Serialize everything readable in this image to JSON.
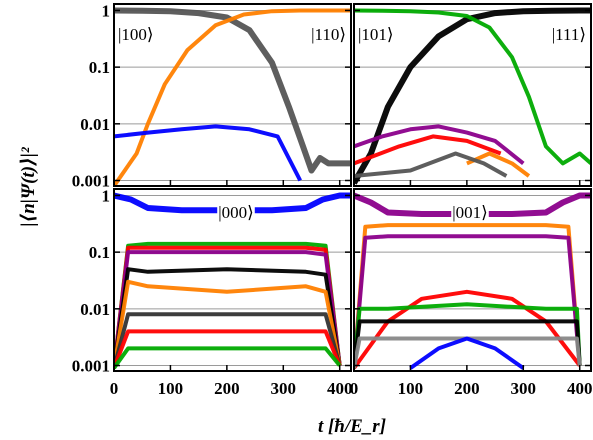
{
  "chart_data": {
    "type": "line",
    "xlabel": "t  [ħ/E_r]",
    "ylabel": "|⟨n|Ψ(t)⟩|²",
    "xlim": [
      0,
      420
    ],
    "ylim": [
      0.0008,
      1.3
    ],
    "yscale": "log",
    "xticks": [
      "0",
      "100",
      "200",
      "300",
      "400"
    ],
    "yticks": [
      "1",
      "0.1",
      "0.01",
      "0.001"
    ],
    "grid": true,
    "panels": [
      {
        "id": "top-left",
        "labels": [
          "|100⟩",
          "|110⟩"
        ],
        "series": [
          {
            "color": "#555555",
            "points": [
              [
                0,
                1
              ],
              [
                50,
                0.99
              ],
              [
                100,
                0.97
              ],
              [
                150,
                0.9
              ],
              [
                200,
                0.75
              ],
              [
                240,
                0.45
              ],
              [
                280,
                0.12
              ],
              [
                310,
                0.02
              ],
              [
                335,
                0.004
              ],
              [
                350,
                0.0015
              ],
              [
                365,
                0.0025
              ],
              [
                380,
                0.002
              ],
              [
                400,
                0.002
              ],
              [
                420,
                0.002
              ]
            ]
          },
          {
            "color": "#ff8000",
            "points": [
              [
                0,
                0.0008
              ],
              [
                40,
                0.003
              ],
              [
                60,
                0.01
              ],
              [
                90,
                0.05
              ],
              [
                130,
                0.2
              ],
              [
                180,
                0.55
              ],
              [
                230,
                0.85
              ],
              [
                280,
                0.97
              ],
              [
                330,
                1
              ],
              [
                420,
                1
              ]
            ]
          },
          {
            "color": "#0000ff",
            "points": [
              [
                0,
                0.006
              ],
              [
                60,
                0.007
              ],
              [
                120,
                0.008
              ],
              [
                180,
                0.009
              ],
              [
                240,
                0.008
              ],
              [
                290,
                0.006
              ],
              [
                330,
                0.001
              ]
            ]
          }
        ]
      },
      {
        "id": "top-right",
        "labels": [
          "|101⟩",
          "|111⟩"
        ],
        "series": [
          {
            "color": "#000000",
            "points": [
              [
                0,
                0.0009
              ],
              [
                30,
                0.003
              ],
              [
                60,
                0.02
              ],
              [
                100,
                0.1
              ],
              [
                150,
                0.35
              ],
              [
                200,
                0.7
              ],
              [
                250,
                0.9
              ],
              [
                300,
                0.97
              ],
              [
                350,
                0.99
              ],
              [
                400,
                1
              ],
              [
                420,
                1
              ]
            ]
          },
          {
            "color": "#00aa00",
            "points": [
              [
                0,
                1
              ],
              [
                50,
                0.99
              ],
              [
                100,
                0.97
              ],
              [
                150,
                0.92
              ],
              [
                200,
                0.8
              ],
              [
                240,
                0.5
              ],
              [
                280,
                0.15
              ],
              [
                310,
                0.03
              ],
              [
                340,
                0.004
              ],
              [
                370,
                0.002
              ],
              [
                400,
                0.003
              ],
              [
                420,
                0.002
              ]
            ]
          },
          {
            "color": "#8b008b",
            "points": [
              [
                0,
                0.004
              ],
              [
                50,
                0.006
              ],
              [
                100,
                0.008
              ],
              [
                150,
                0.009
              ],
              [
                200,
                0.007
              ],
              [
                250,
                0.005
              ],
              [
                300,
                0.002
              ]
            ]
          },
          {
            "color": "#ff0000",
            "points": [
              [
                0,
                0.002
              ],
              [
                80,
                0.004
              ],
              [
                140,
                0.006
              ],
              [
                200,
                0.005
              ],
              [
                260,
                0.003
              ]
            ]
          },
          {
            "color": "#ff8000",
            "points": [
              [
                200,
                0.002
              ],
              [
                240,
                0.003
              ],
              [
                280,
                0.002
              ],
              [
                310,
                0.0012
              ]
            ]
          },
          {
            "color": "#555555",
            "points": [
              [
                0,
                0.0012
              ],
              [
                100,
                0.0015
              ],
              [
                180,
                0.003
              ],
              [
                230,
                0.002
              ],
              [
                270,
                0.0012
              ]
            ]
          }
        ]
      },
      {
        "id": "bottom-left",
        "labels": [
          "|000⟩"
        ],
        "series": [
          {
            "color": "#0000ff",
            "points": [
              [
                0,
                1
              ],
              [
                30,
                0.85
              ],
              [
                60,
                0.6
              ],
              [
                120,
                0.55
              ],
              [
                200,
                0.55
              ],
              [
                280,
                0.55
              ],
              [
                340,
                0.6
              ],
              [
                370,
                0.85
              ],
              [
                400,
                1
              ],
              [
                420,
                1
              ]
            ]
          },
          {
            "color": "#00aa00",
            "points": [
              [
                0,
                0.0009
              ],
              [
                25,
                0.13
              ],
              [
                60,
                0.14
              ],
              [
                200,
                0.14
              ],
              [
                340,
                0.14
              ],
              [
                375,
                0.13
              ],
              [
                400,
                0.001
              ]
            ]
          },
          {
            "color": "#ff0000",
            "points": [
              [
                0,
                0.0009
              ],
              [
                25,
                0.12
              ],
              [
                60,
                0.12
              ],
              [
                200,
                0.12
              ],
              [
                340,
                0.12
              ],
              [
                375,
                0.11
              ],
              [
                400,
                0.001
              ]
            ]
          },
          {
            "color": "#8b008b",
            "points": [
              [
                0,
                0.0009
              ],
              [
                25,
                0.1
              ],
              [
                60,
                0.1
              ],
              [
                200,
                0.1
              ],
              [
                340,
                0.1
              ],
              [
                375,
                0.09
              ],
              [
                400,
                0.001
              ]
            ]
          },
          {
            "color": "#000000",
            "points": [
              [
                0,
                0.0009
              ],
              [
                25,
                0.05
              ],
              [
                60,
                0.045
              ],
              [
                200,
                0.05
              ],
              [
                340,
                0.045
              ],
              [
                375,
                0.04
              ],
              [
                400,
                0.001
              ]
            ]
          },
          {
            "color": "#ff8000",
            "points": [
              [
                0,
                0.0009
              ],
              [
                25,
                0.03
              ],
              [
                60,
                0.025
              ],
              [
                200,
                0.02
              ],
              [
                340,
                0.025
              ],
              [
                375,
                0.02
              ],
              [
                400,
                0.001
              ]
            ]
          },
          {
            "color": "#333333",
            "points": [
              [
                0,
                0.0009
              ],
              [
                25,
                0.008
              ],
              [
                200,
                0.008
              ],
              [
                375,
                0.008
              ],
              [
                400,
                0.001
              ]
            ]
          },
          {
            "color": "#ff0000",
            "points": [
              [
                0,
                0.0009
              ],
              [
                25,
                0.004
              ],
              [
                200,
                0.004
              ],
              [
                375,
                0.004
              ],
              [
                400,
                0.001
              ]
            ]
          },
          {
            "color": "#00aa00",
            "points": [
              [
                0,
                0.0009
              ],
              [
                25,
                0.002
              ],
              [
                200,
                0.002
              ],
              [
                375,
                0.002
              ],
              [
                400,
                0.001
              ]
            ]
          }
        ]
      },
      {
        "id": "bottom-right",
        "labels": [
          "|001⟩"
        ],
        "series": [
          {
            "color": "#8b008b",
            "points": [
              [
                0,
                1
              ],
              [
                30,
                0.75
              ],
              [
                60,
                0.5
              ],
              [
                120,
                0.47
              ],
              [
                200,
                0.47
              ],
              [
                280,
                0.47
              ],
              [
                340,
                0.5
              ],
              [
                370,
                0.75
              ],
              [
                400,
                1
              ],
              [
                420,
                1
              ]
            ]
          },
          {
            "color": "#ff8000",
            "points": [
              [
                0,
                0.0009
              ],
              [
                20,
                0.28
              ],
              [
                60,
                0.3
              ],
              [
                200,
                0.3
              ],
              [
                340,
                0.3
              ],
              [
                380,
                0.28
              ],
              [
                400,
                0.001
              ]
            ]
          },
          {
            "color": "#8b008b",
            "points": [
              [
                0,
                0.0009
              ],
              [
                20,
                0.18
              ],
              [
                60,
                0.19
              ],
              [
                200,
                0.19
              ],
              [
                340,
                0.19
              ],
              [
                380,
                0.18
              ],
              [
                400,
                0.001
              ]
            ]
          },
          {
            "color": "#ff0000",
            "points": [
              [
                0,
                0.0009
              ],
              [
                60,
                0.006
              ],
              [
                120,
                0.015
              ],
              [
                200,
                0.02
              ],
              [
                280,
                0.015
              ],
              [
                340,
                0.006
              ],
              [
                400,
                0.001
              ]
            ]
          },
          {
            "color": "#00aa00",
            "points": [
              [
                0,
                0.0009
              ],
              [
                10,
                0.01
              ],
              [
                60,
                0.01
              ],
              [
                200,
                0.012
              ],
              [
                340,
                0.01
              ],
              [
                395,
                0.01
              ],
              [
                400,
                0.001
              ]
            ]
          },
          {
            "color": "#000000",
            "points": [
              [
                0,
                0.0009
              ],
              [
                10,
                0.006
              ],
              [
                200,
                0.006
              ],
              [
                395,
                0.006
              ],
              [
                400,
                0.001
              ]
            ]
          },
          {
            "color": "#888888",
            "points": [
              [
                0,
                0.0009
              ],
              [
                10,
                0.003
              ],
              [
                200,
                0.003
              ],
              [
                395,
                0.003
              ],
              [
                400,
                0.001
              ]
            ]
          },
          {
            "color": "#0000ff",
            "points": [
              [
                100,
                0.0009
              ],
              [
                150,
                0.002
              ],
              [
                200,
                0.003
              ],
              [
                250,
                0.002
              ],
              [
                300,
                0.0009
              ]
            ]
          }
        ]
      }
    ]
  }
}
